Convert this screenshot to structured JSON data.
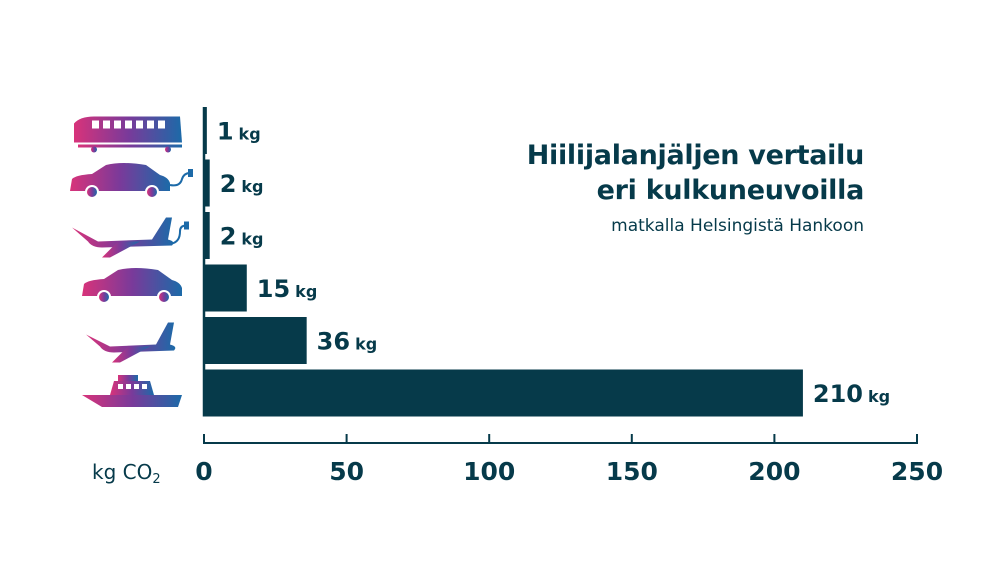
{
  "title_lines": [
    "Hiilijalanjäljen vertailu",
    "eri kulkuneuvoilla"
  ],
  "subtitle": "matkalla Helsingistä Hankoon",
  "colors": {
    "bar": "#063a4a",
    "text": "#063a4a",
    "icon_gradient_start": "#d8337a",
    "icon_gradient_mid": "#7a3a9a",
    "icon_gradient_end": "#1c6aa8"
  },
  "chart_data": {
    "type": "bar",
    "orientation": "horizontal",
    "title": "Hiilijalanjäljen vertailu eri kulkuneuvoilla",
    "subtitle": "matkalla Helsingistä Hankoon",
    "xlabel": "kg CO₂",
    "xlabel_parts": {
      "base": "kg CO",
      "sub": "2"
    },
    "xlim": [
      0,
      250
    ],
    "xticks": [
      0,
      50,
      100,
      150,
      200,
      250
    ],
    "unit": "kg",
    "grid": false,
    "categories": [
      "train-icon",
      "electric-car-icon",
      "electric-plane-icon",
      "car-icon",
      "plane-icon",
      "boat-icon"
    ],
    "values": [
      1,
      2,
      2,
      15,
      36,
      210
    ],
    "value_labels": [
      "1",
      "2",
      "2",
      "15",
      "36",
      "210"
    ]
  }
}
